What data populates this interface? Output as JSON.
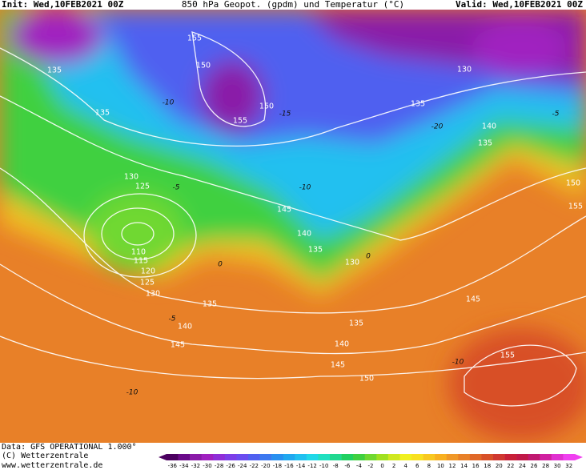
{
  "header": {
    "init": "Init: Wed,10FEB2021 00Z",
    "title": "850 hPa Geopot. (gpdm) und Temperatur (°C)",
    "valid": "Valid: Wed,10FEB2021 00Z"
  },
  "map": {
    "geopotential_labels": [
      155,
      150,
      135,
      130,
      150,
      135,
      155,
      135,
      140,
      135,
      130,
      125,
      150,
      145,
      155,
      140,
      135,
      110,
      130,
      115,
      120,
      125,
      130,
      135,
      145,
      140,
      135,
      145,
      140,
      145,
      155,
      150
    ],
    "temperature_labels": [
      -10,
      -15,
      -20,
      -5,
      -10,
      -5,
      0,
      -5,
      0,
      -10,
      -10
    ]
  },
  "colorbar": {
    "ticks": [
      -36,
      -34,
      -32,
      -30,
      -28,
      -26,
      -24,
      -22,
      -20,
      -18,
      -16,
      -14,
      -12,
      -10,
      -8,
      -6,
      -4,
      -2,
      0,
      2,
      4,
      6,
      8,
      10,
      12,
      14,
      16,
      18,
      20,
      22,
      24,
      26,
      28,
      30,
      32
    ],
    "colors": [
      "#4b0060",
      "#6a0a8a",
      "#8a1aa8",
      "#a020c0",
      "#8f2ed8",
      "#7c3ee8",
      "#6a4cf0",
      "#5060f0",
      "#3c78f0",
      "#2890f0",
      "#20a8f0",
      "#20c0f0",
      "#20d8e8",
      "#20e0c0",
      "#20d890",
      "#20d060",
      "#40d040",
      "#70d830",
      "#a0e020",
      "#d0e820",
      "#f0f020",
      "#f8e020",
      "#f8c820",
      "#f8b020",
      "#f09828",
      "#e88028",
      "#e06828",
      "#d85028",
      "#d03830",
      "#c82038",
      "#c01848",
      "#c01870",
      "#d020a0",
      "#e030d0",
      "#f040f0"
    ]
  },
  "footer": {
    "data": "Data: GFS OPERATIONAL 1.000°",
    "copyright": "(C) Wetterzentrale",
    "url": "www.wetterzentrale.de"
  }
}
